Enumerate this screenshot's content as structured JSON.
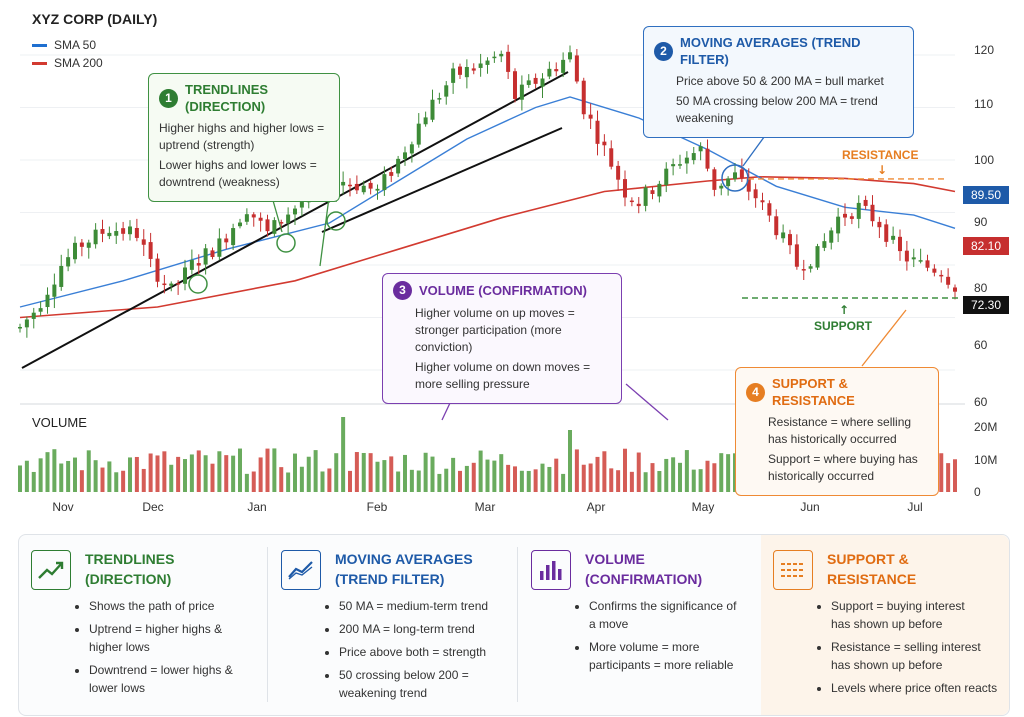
{
  "colors": {
    "up": "#3d8b37",
    "down": "#c62f2f",
    "sma50": "#3a7fd6",
    "sma200": "#d23a30",
    "green": "#2e7d32",
    "blue": "#1e5aa8",
    "purple": "#6a2c9e",
    "orange": "#e67e22"
  },
  "chart_data": {
    "type": "candlestick",
    "title": "XYZ CORP (DAILY)",
    "legend": [
      {
        "name": "SMA 50",
        "color": "#3a7fd6"
      },
      {
        "name": "SMA 200",
        "color": "#d23a30"
      }
    ],
    "x_ticks": [
      "Nov",
      "Dec",
      "Jan",
      "Feb",
      "Mar",
      "Apr",
      "May",
      "Jun",
      "Jul"
    ],
    "y_ticks": [
      "60",
      "60",
      "80",
      "90",
      "100",
      "110",
      "120"
    ],
    "volume_label": "VOLUME",
    "volume_ticks": [
      "0",
      "10M",
      "20M"
    ],
    "price_tags": [
      {
        "label": "89.50",
        "value": 89.5,
        "color": "#1e5aa8"
      },
      {
        "label": "82.10",
        "value": 82.1,
        "color": "#c62f2f"
      },
      {
        "label": "72.30",
        "value": 72.3,
        "color": "#111111"
      }
    ],
    "price_path": [
      [
        0,
        68
      ],
      [
        5,
        72
      ],
      [
        12,
        80
      ],
      [
        18,
        84
      ],
      [
        26,
        87
      ],
      [
        34,
        86
      ],
      [
        38,
        80
      ],
      [
        44,
        75
      ],
      [
        50,
        80
      ],
      [
        58,
        84
      ],
      [
        66,
        91
      ],
      [
        72,
        86
      ],
      [
        78,
        90
      ],
      [
        86,
        94
      ],
      [
        94,
        96
      ],
      [
        100,
        95
      ],
      [
        104,
        94
      ],
      [
        110,
        100
      ],
      [
        118,
        109
      ],
      [
        126,
        116
      ],
      [
        134,
        118
      ],
      [
        140,
        120
      ],
      [
        144,
        112
      ],
      [
        150,
        115
      ],
      [
        156,
        118
      ],
      [
        160,
        120
      ],
      [
        164,
        110
      ],
      [
        170,
        102
      ],
      [
        176,
        94
      ],
      [
        180,
        92
      ],
      [
        186,
        96
      ],
      [
        192,
        100
      ],
      [
        198,
        102
      ],
      [
        202,
        95
      ],
      [
        208,
        97
      ],
      [
        214,
        93
      ],
      [
        220,
        87
      ],
      [
        226,
        80
      ],
      [
        232,
        82
      ],
      [
        238,
        89
      ],
      [
        244,
        91
      ],
      [
        250,
        88
      ],
      [
        256,
        82
      ],
      [
        262,
        80
      ],
      [
        268,
        79
      ],
      [
        272,
        76
      ]
    ],
    "sma50": [
      [
        0,
        72
      ],
      [
        30,
        77
      ],
      [
        60,
        83
      ],
      [
        90,
        88
      ],
      [
        110,
        96
      ],
      [
        130,
        104
      ],
      [
        150,
        110
      ],
      [
        160,
        112
      ],
      [
        180,
        108
      ],
      [
        200,
        102
      ],
      [
        220,
        95
      ],
      [
        240,
        91
      ],
      [
        260,
        89.5
      ],
      [
        272,
        87
      ]
    ],
    "sma200": [
      [
        0,
        70
      ],
      [
        40,
        72
      ],
      [
        80,
        77
      ],
      [
        110,
        83
      ],
      [
        140,
        89
      ],
      [
        170,
        94
      ],
      [
        200,
        96
      ],
      [
        215,
        96.8
      ],
      [
        240,
        96.5
      ],
      [
        260,
        95.5
      ],
      [
        272,
        94
      ]
    ],
    "annotations": {
      "resistance": {
        "label": "RESISTANCE",
        "value": 96.4
      },
      "support": {
        "label": "SUPPORT",
        "value": 79.4
      }
    }
  },
  "callouts": [
    {
      "num": "1",
      "title": "TRENDLINES (DIRECTION)",
      "lines": [
        "Higher highs and higher lows = uptrend (strength)",
        "Lower highs and lower lows = downtrend (weakness)"
      ]
    },
    {
      "num": "2",
      "title": "MOVING AVERAGES (TREND FILTER)",
      "lines": [
        "Price above 50 & 200 MA = bull market",
        "50 MA crossing below 200 MA = trend weakening"
      ]
    },
    {
      "num": "3",
      "title": "VOLUME (CONFIRMATION)",
      "lines": [
        "Higher volume on up moves = stronger participation (more conviction)",
        "Higher volume on down moves = more selling pressure"
      ]
    },
    {
      "num": "4",
      "title": "SUPPORT & RESISTANCE",
      "lines": [
        "Resistance = where selling has historically occurred",
        "Support = where buying has historically occurred"
      ]
    }
  ],
  "summary": [
    {
      "title": [
        "TRENDLINES",
        "(DIRECTION)"
      ],
      "icon": "trend-up-icon",
      "items": [
        "Shows the path of price",
        "Uptrend = higher highs & higher lows",
        "Downtrend = lower highs & lower lows"
      ]
    },
    {
      "title": [
        "MOVING AVERAGES",
        "(TREND FILTER)"
      ],
      "icon": "moving-average-icon",
      "items": [
        "50 MA = medium-term trend",
        "200 MA = long-term trend",
        "Price above both = strength",
        "50 crossing below 200 = weakening trend"
      ]
    },
    {
      "title": [
        "VOLUME",
        "(CONFIRMATION)"
      ],
      "icon": "volume-bars-icon",
      "items": [
        "Confirms the significance of a move",
        "More volume = more participants = more reliable"
      ]
    },
    {
      "title": [
        "SUPPORT &",
        "RESISTANCE"
      ],
      "icon": "support-resistance-icon",
      "items": [
        "Support = buying interest has shown up before",
        "Resistance = selling interest has shown up before",
        "Levels where price often reacts"
      ]
    }
  ]
}
